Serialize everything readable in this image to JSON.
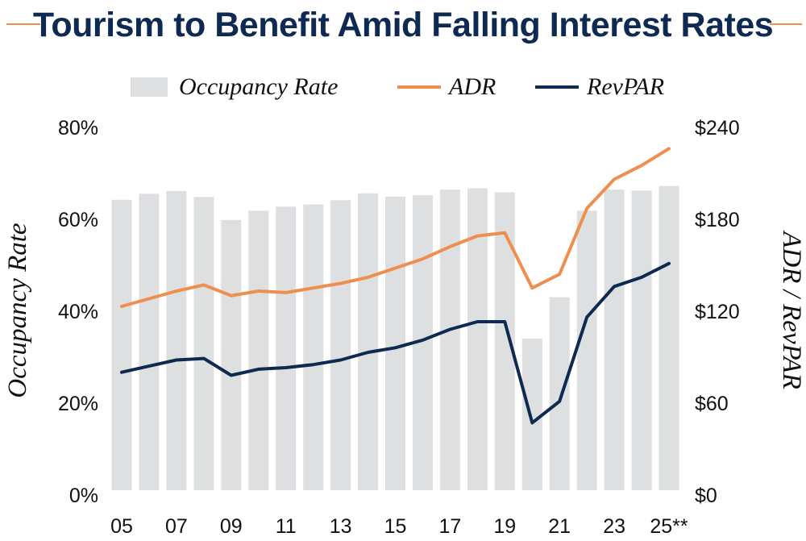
{
  "colors": {
    "title": "#0f2a52",
    "accent": "#ee8f4f",
    "bar": "#dedfe0",
    "adr": "#ee8f4f",
    "revpar": "#0e2a50",
    "text": "#111111"
  },
  "chart_data": {
    "type": "bar",
    "title": "Tourism to Benefit Amid Falling Interest Rates",
    "categories": [
      "05",
      "06",
      "07",
      "08",
      "09",
      "10",
      "11",
      "12",
      "13",
      "14",
      "15",
      "16",
      "17",
      "18",
      "19",
      "20",
      "21",
      "22",
      "23",
      "24",
      "25**"
    ],
    "x_tick_labels": [
      "05",
      "07",
      "09",
      "11",
      "13",
      "15",
      "17",
      "19",
      "21",
      "23",
      "25**"
    ],
    "y_left": {
      "label": "Occupancy Rate",
      "ticks": [
        "80%",
        "60%",
        "40%",
        "20%",
        "0%"
      ],
      "range": [
        0,
        80
      ]
    },
    "y_right": {
      "label": "ADR / RevPAR",
      "ticks": [
        "$240",
        "$180",
        "$120",
        "$60",
        "$0"
      ],
      "range": [
        0,
        240
      ]
    },
    "legend": [
      "Occupancy Rate",
      "ADR",
      "RevPAR"
    ],
    "legend_position": "top",
    "grid": false,
    "series": [
      {
        "name": "Occupancy Rate",
        "type": "bar",
        "axis": "left",
        "values": [
          63.2,
          64.5,
          65.1,
          63.8,
          58.8,
          60.8,
          61.7,
          62.2,
          63.1,
          64.6,
          63.9,
          64.2,
          65.4,
          65.7,
          64.8,
          33.0,
          42.0,
          60.8,
          65.4,
          65.2,
          66.2
        ]
      },
      {
        "name": "ADR",
        "type": "line",
        "axis": "right",
        "values": [
          120,
          125,
          130,
          134,
          127,
          130,
          129,
          132,
          135,
          139,
          145,
          151,
          159,
          166,
          168,
          132,
          141,
          184,
          203,
          212,
          223
        ]
      },
      {
        "name": "RevPAR",
        "type": "line",
        "axis": "right",
        "values": [
          77,
          81,
          85,
          86,
          75,
          79,
          80,
          82,
          85,
          90,
          93,
          98,
          105,
          110,
          110,
          44,
          58,
          113,
          133,
          139,
          148
        ]
      }
    ]
  }
}
